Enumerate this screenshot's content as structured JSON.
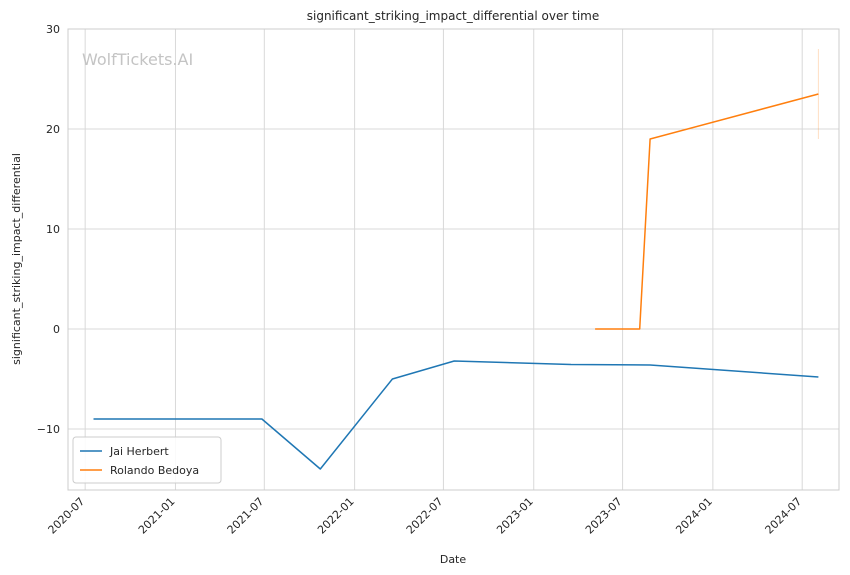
{
  "chart_data": {
    "type": "line",
    "title": "significant_striking_impact_differential over time",
    "xlabel": "Date",
    "ylabel": "significant_striking_impact_differential",
    "watermark": "WolfTickets.AI",
    "x_type": "date",
    "xlim": [
      "2020-05-27",
      "2024-09-14"
    ],
    "ylim": [
      -16.1,
      30
    ],
    "x_ticks": [
      "2020-07",
      "2021-01",
      "2021-07",
      "2022-01",
      "2022-07",
      "2023-01",
      "2023-07",
      "2024-01",
      "2024-07"
    ],
    "y_ticks": [
      -10,
      0,
      10,
      20,
      30
    ],
    "grid": true,
    "legend_position": "lower-left",
    "series": [
      {
        "name": "Jai Herbert",
        "color": "#1f77b4",
        "x": [
          "2020-07-18",
          "2021-06-26",
          "2021-10-23",
          "2022-03-19",
          "2022-07-23",
          "2023-03-18",
          "2023-08-26",
          "2024-08-03"
        ],
        "y": [
          -9.0,
          -9.0,
          -14.0,
          -5.0,
          -3.2,
          -3.55,
          -3.6,
          -4.8
        ]
      },
      {
        "name": "Rolando Bedoya",
        "color": "#ff7f0e",
        "x": [
          "2023-05-06",
          "2023-08-05",
          "2023-08-26",
          "2024-08-03"
        ],
        "y": [
          0.0,
          0.0,
          19.0,
          23.5
        ]
      }
    ]
  }
}
